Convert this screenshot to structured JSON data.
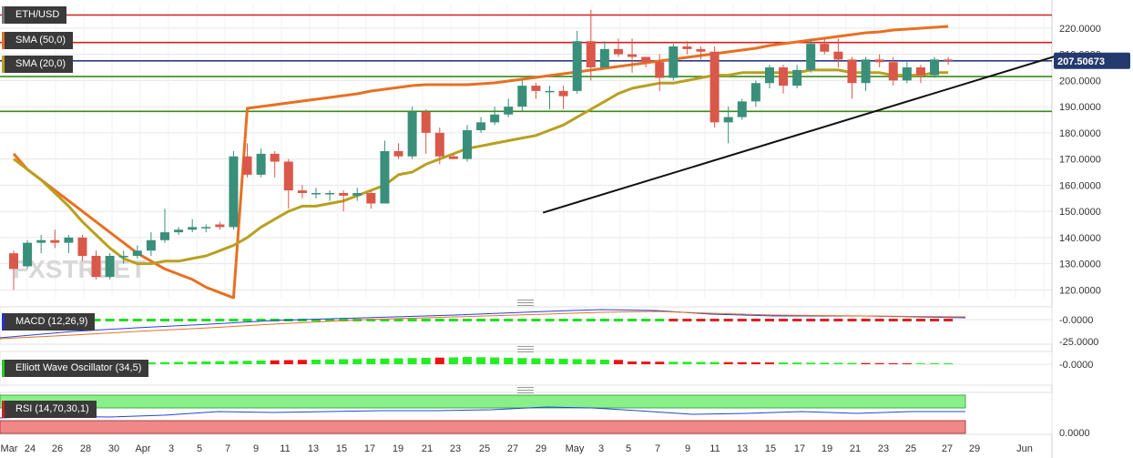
{
  "chart_data": {
    "type": "candlestick",
    "symbol": "ETH/USD",
    "watermark": "FXSTREET",
    "price_axis": {
      "ylim": [
        117,
        229
      ],
      "ticks": [
        "220.0000",
        "210.0000",
        "200.0000",
        "190.0000",
        "180.0000",
        "170.0000",
        "160.0000",
        "150.0000",
        "140.0000",
        "130.0000",
        "120.0000"
      ],
      "tick_values": [
        220,
        210,
        200,
        190,
        180,
        170,
        160,
        150,
        140,
        130,
        120
      ],
      "current_price": "207.50673"
    },
    "x_axis": {
      "labels": [
        "Mar",
        "24",
        "26",
        "28",
        "30",
        "Apr",
        "3",
        "5",
        "7",
        "9",
        "11",
        "13",
        "15",
        "17",
        "19",
        "21",
        "23",
        "25",
        "27",
        "29",
        "May",
        "3",
        "5",
        "7",
        "9",
        "11",
        "13",
        "15",
        "17",
        "19",
        "21",
        "23",
        "25",
        "27",
        "29",
        "Jun"
      ]
    },
    "horizontal_levels": [
      {
        "price": 225,
        "color": "#d42020"
      },
      {
        "price": 214.5,
        "color": "#d42020"
      },
      {
        "price": 207.5,
        "color": "#2a3a8a"
      },
      {
        "price": 201.5,
        "color": "#3a8a1a"
      },
      {
        "price": 188.2,
        "color": "#3a8a1a"
      }
    ],
    "trendline": {
      "from": {
        "bar": 13,
        "price": 149.5
      },
      "to": {
        "bar": 38.8,
        "price": 210.5
      },
      "color": "#111111"
    },
    "candles": [
      [
        134,
        128,
        135,
        120
      ],
      [
        129,
        138,
        139,
        128
      ],
      [
        138,
        139,
        141,
        134
      ],
      [
        139,
        138,
        143,
        136
      ],
      [
        138,
        140,
        141,
        134
      ],
      [
        140,
        133,
        141,
        131
      ],
      [
        133,
        125,
        135,
        124
      ],
      [
        125,
        133,
        134,
        124
      ],
      [
        133,
        133,
        135,
        130
      ],
      [
        133,
        135,
        137,
        132
      ],
      [
        135,
        139,
        142,
        133
      ],
      [
        139,
        142,
        151,
        138
      ],
      [
        142,
        143,
        144,
        141
      ],
      [
        143,
        144,
        147,
        142
      ],
      [
        144,
        144,
        145,
        142
      ],
      [
        145,
        144,
        146,
        143
      ],
      [
        144,
        171,
        173,
        143
      ],
      [
        171,
        164,
        176,
        163
      ],
      [
        164,
        172,
        174,
        163
      ],
      [
        172,
        169,
        173,
        163
      ],
      [
        169,
        158,
        170,
        151
      ],
      [
        158,
        157,
        160,
        155
      ],
      [
        157,
        157,
        159,
        155
      ],
      [
        157,
        157,
        158,
        154
      ],
      [
        157,
        156,
        158,
        150
      ],
      [
        156,
        157,
        159,
        154
      ],
      [
        157,
        153,
        158,
        151
      ],
      [
        153,
        173,
        177,
        153
      ],
      [
        173,
        171,
        176,
        170
      ],
      [
        171,
        188,
        190,
        170
      ],
      [
        188,
        180,
        189,
        172
      ],
      [
        180,
        171,
        182,
        168
      ],
      [
        171,
        170,
        172,
        170
      ],
      [
        170,
        181,
        183,
        169
      ],
      [
        181,
        184,
        186,
        180
      ],
      [
        184,
        187,
        190,
        183
      ],
      [
        187,
        190,
        193,
        186
      ],
      [
        190,
        198,
        200,
        188
      ],
      [
        198,
        196,
        199,
        193
      ],
      [
        196,
        196,
        198,
        189
      ],
      [
        196,
        194,
        198,
        189
      ],
      [
        196,
        215,
        219,
        195
      ],
      [
        215,
        205,
        227,
        200
      ],
      [
        205,
        212,
        215,
        205
      ],
      [
        212,
        210,
        216,
        209
      ],
      [
        210,
        209,
        216,
        203
      ],
      [
        209,
        207,
        208,
        205
      ],
      [
        207,
        201,
        210,
        196
      ],
      [
        201,
        213,
        214,
        200
      ],
      [
        213,
        212,
        215,
        210
      ],
      [
        212,
        211,
        213,
        208
      ],
      [
        211,
        184,
        213,
        182
      ],
      [
        184,
        186,
        190,
        176
      ],
      [
        186,
        192,
        193,
        185
      ],
      [
        192,
        199,
        200,
        190
      ],
      [
        199,
        205,
        206,
        197
      ],
      [
        205,
        198,
        206,
        195
      ],
      [
        198,
        204,
        206,
        197
      ],
      [
        204,
        214,
        216,
        203
      ],
      [
        214,
        211,
        216,
        210
      ],
      [
        211,
        208,
        216,
        205
      ],
      [
        208,
        199,
        209,
        193
      ],
      [
        199,
        208,
        209,
        196
      ],
      [
        208,
        207,
        210,
        205
      ],
      [
        207,
        200,
        209,
        198
      ],
      [
        200,
        205,
        207,
        199
      ],
      [
        205,
        202,
        206,
        199
      ],
      [
        202,
        208,
        209,
        201
      ],
      [
        208,
        207.5,
        209,
        206
      ]
    ],
    "sma_50": [
      [
        0,
        172
      ],
      [
        1,
        166
      ],
      [
        2,
        162
      ],
      [
        3,
        158
      ],
      [
        4,
        154
      ],
      [
        5,
        150
      ],
      [
        6,
        146
      ],
      [
        7,
        142
      ],
      [
        8,
        138
      ],
      [
        9,
        134
      ],
      [
        10,
        131
      ],
      [
        11,
        128
      ],
      [
        12,
        126
      ],
      [
        13,
        124
      ],
      [
        14,
        121
      ],
      [
        15,
        119
      ],
      [
        16,
        117
      ],
      [
        17,
        114
      ],
      [
        18,
        112
      ],
      [
        19,
        110
      ],
      [
        20,
        108
      ],
      [
        21,
        106
      ],
      [
        22,
        104
      ],
      [
        23,
        102
      ],
      [
        24,
        100
      ],
      [
        25,
        98
      ],
      [
        26,
        95
      ],
      [
        27,
        93
      ],
      [
        28,
        91
      ],
      [
        29,
        89
      ],
      [
        30,
        88
      ],
      [
        31,
        88
      ],
      [
        32,
        88
      ],
      [
        33,
        88
      ],
      [
        34,
        87
      ],
      [
        35,
        86
      ],
      [
        36,
        84
      ],
      [
        37,
        82
      ],
      [
        38,
        80
      ],
      [
        39,
        78
      ],
      [
        40,
        76
      ],
      [
        41,
        74
      ],
      [
        42,
        72
      ],
      [
        43,
        70
      ],
      [
        44,
        68
      ],
      [
        45,
        66
      ],
      [
        46,
        64
      ],
      [
        47,
        62
      ],
      [
        48,
        60
      ],
      [
        49,
        58
      ],
      [
        50,
        56
      ],
      [
        51,
        54
      ],
      [
        52,
        52
      ],
      [
        53,
        50
      ],
      [
        54,
        48
      ],
      [
        55,
        45
      ],
      [
        56,
        43
      ],
      [
        57,
        41
      ],
      [
        58,
        39
      ],
      [
        59,
        37
      ],
      [
        60,
        35
      ],
      [
        61,
        33
      ],
      [
        62,
        31
      ],
      [
        63,
        30
      ],
      [
        64,
        28
      ],
      [
        65,
        27
      ],
      [
        66,
        26
      ],
      [
        67,
        25
      ],
      [
        68,
        24
      ]
    ],
    "sma_20": [
      [
        0,
        170
      ],
      [
        1,
        166
      ],
      [
        2,
        162
      ],
      [
        3,
        157
      ],
      [
        4,
        152
      ],
      [
        5,
        146
      ],
      [
        6,
        141
      ],
      [
        7,
        136
      ],
      [
        8,
        132
      ],
      [
        9,
        130
      ],
      [
        10,
        130
      ],
      [
        11,
        131
      ],
      [
        12,
        131
      ],
      [
        13,
        132
      ],
      [
        14,
        133
      ],
      [
        15,
        135
      ],
      [
        16,
        137
      ],
      [
        17,
        140
      ],
      [
        18,
        144
      ],
      [
        19,
        147
      ],
      [
        20,
        150
      ],
      [
        21,
        152
      ],
      [
        22,
        152
      ],
      [
        23,
        153
      ],
      [
        24,
        154
      ],
      [
        25,
        156
      ],
      [
        26,
        158
      ],
      [
        27,
        160
      ],
      [
        28,
        164
      ],
      [
        29,
        165
      ],
      [
        30,
        168
      ],
      [
        31,
        170
      ],
      [
        32,
        172
      ],
      [
        33,
        174
      ],
      [
        34,
        175
      ],
      [
        35,
        176
      ],
      [
        36,
        177
      ],
      [
        37,
        178
      ],
      [
        38,
        179
      ],
      [
        39,
        181
      ],
      [
        40,
        183
      ],
      [
        41,
        186
      ],
      [
        42,
        189
      ],
      [
        43,
        192
      ],
      [
        44,
        195
      ],
      [
        45,
        197
      ],
      [
        46,
        198
      ],
      [
        47,
        199
      ],
      [
        48,
        199
      ],
      [
        49,
        200
      ],
      [
        50,
        201
      ],
      [
        51,
        202
      ],
      [
        52,
        202
      ],
      [
        53,
        203
      ],
      [
        54,
        203
      ],
      [
        55,
        203
      ],
      [
        56,
        203
      ],
      [
        57,
        203
      ],
      [
        58,
        204
      ],
      [
        59,
        204
      ],
      [
        60,
        204
      ],
      [
        61,
        203
      ],
      [
        62,
        203
      ],
      [
        63,
        203
      ],
      [
        64,
        202
      ],
      [
        65,
        202
      ],
      [
        66,
        202
      ],
      [
        67,
        203
      ],
      [
        68,
        203
      ]
    ],
    "indicators": {
      "macd_label": "MACD (12,26,9)",
      "macd_ticks": [
        "-0.0000",
        "-25.0000"
      ],
      "ewo_label": "Elliott Wave Oscillator (34,5)",
      "ewo_ticks": [
        "-0.0000"
      ],
      "rsi_label": "RSI (14,70,30,1)",
      "rsi_ticks": [
        "0.0000"
      ]
    },
    "legend": [
      "SMA (50,0)",
      "SMA (20,0)"
    ],
    "colors": {
      "up": "#3a8f7a",
      "down": "#d9584a",
      "sma50": "#e87020",
      "sma20": "#b8a020",
      "grid": "#e6e6e6"
    }
  },
  "labels": {
    "symbol": "ETH/USD",
    "sma50": "SMA (50,0)",
    "sma20": "SMA (20,0)",
    "macd": "MACD (12,26,9)",
    "ewo": "Elliott Wave Oscillator (34,5)",
    "rsi": "RSI (14,70,30,1)"
  }
}
